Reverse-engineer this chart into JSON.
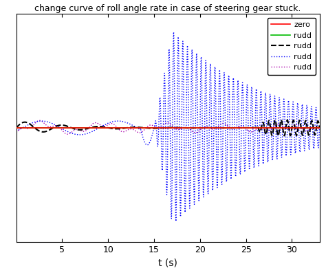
{
  "title": "change curve of roll angle rate in case of steering gear stuck.",
  "xlabel": "t (s)",
  "xlim": [
    0,
    33
  ],
  "ylim": [
    -1.0,
    1.0
  ],
  "xticks": [
    5,
    10,
    15,
    20,
    25,
    30
  ],
  "legend_labels": [
    "zero",
    "rudd",
    "rudd",
    "rudd",
    "rudd"
  ],
  "line_styles": [
    {
      "color": "#ff0000",
      "ls": "-",
      "lw": 1.2
    },
    {
      "color": "#00bb00",
      "ls": "-",
      "lw": 1.2
    },
    {
      "color": "#000000",
      "ls": "--",
      "lw": 1.5
    },
    {
      "color": "#0000ff",
      "ls": ":",
      "lw": 1.0
    },
    {
      "color": "#aa00aa",
      "ls": ":",
      "lw": 1.0
    }
  ],
  "background_color": "#ffffff"
}
